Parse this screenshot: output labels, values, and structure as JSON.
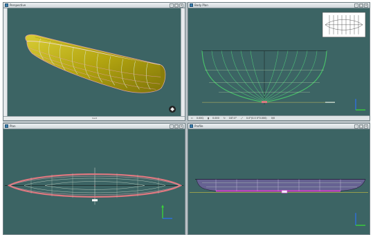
{
  "viewports": {
    "perspective": {
      "title": "Perspective",
      "menu_icon": "menu-glyph-icon"
    },
    "body_plan": {
      "title": "Body Plan"
    },
    "plan": {
      "title": "Plan"
    },
    "profile": {
      "title": "Profile"
    }
  },
  "window_buttons": {
    "minimize": "–",
    "maximize": "□",
    "close": "×"
  },
  "body_plan_status": [
    {
      "icon": "arrows",
      "label": "0.00Q"
    },
    {
      "icon": "bar",
      "label": "0.000"
    },
    {
      "icon": "rotate",
      "label": "187.0°"
    },
    {
      "icon": "link",
      "label": "0.0°(0.0 0°0.000)"
    },
    {
      "icon": "",
      "label": "0/0"
    }
  ],
  "perspective_rulers": {
    "bottom_label": "Cent"
  },
  "colors": {
    "viewport_bg": "#3c6464",
    "hull_yellow": "#b2a410",
    "station_line": "#d8e8c8",
    "sheer_green": "#49c06a",
    "pink": "#e07880",
    "magenta": "#d040c8",
    "purple": "#8860b8",
    "axis_blue": "#2f6fe0",
    "axis_green": "#3ad13a"
  }
}
